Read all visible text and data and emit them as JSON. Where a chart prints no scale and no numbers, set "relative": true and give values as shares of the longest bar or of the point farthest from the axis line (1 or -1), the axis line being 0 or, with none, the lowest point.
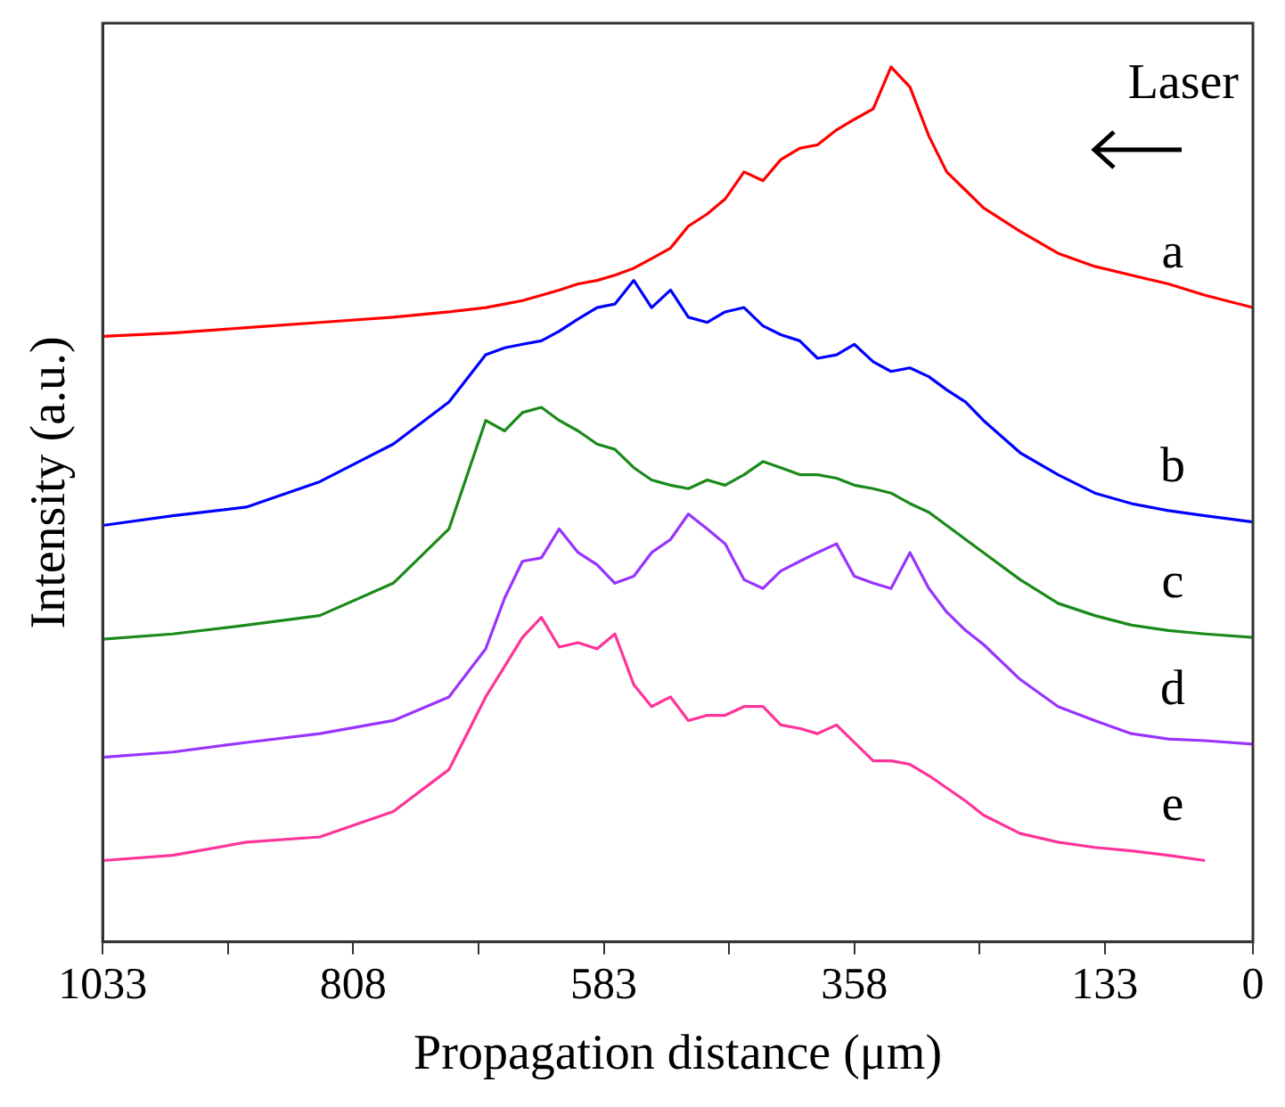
{
  "chart_data": {
    "type": "line",
    "xlabel": "Propagation distance (μm)",
    "ylabel": "Intensity (a.u.)",
    "relative": true,
    "legend": false,
    "xlim": [
      1033,
      0
    ],
    "xticks": [
      1033,
      {
        "value": 920.5,
        "label": null
      },
      808,
      {
        "value": 695.5,
        "label": null
      },
      583,
      {
        "value": 470.5,
        "label": null
      },
      358,
      {
        "value": 245.5,
        "label": null
      },
      133,
      0
    ],
    "annotations": [
      "Laser"
    ],
    "x": [
      1033,
      970,
      904,
      838,
      772,
      722,
      689,
      672,
      656,
      639,
      623,
      606,
      589,
      573,
      556,
      540,
      523,
      507,
      490,
      474,
      457,
      440,
      424,
      407,
      391,
      374,
      358,
      341,
      325,
      308,
      291,
      275,
      258,
      242,
      209,
      175,
      142,
      109,
      76,
      43,
      0
    ],
    "series": [
      {
        "name": "a",
        "color": "#ff0000",
        "values": [
          0.692,
          0.696,
          0.702,
          0.708,
          0.714,
          0.72,
          0.725,
          0.729,
          0.733,
          0.739,
          0.745,
          0.752,
          0.756,
          0.762,
          0.77,
          0.781,
          0.793,
          0.818,
          0.832,
          0.849,
          0.88,
          0.87,
          0.894,
          0.907,
          0.911,
          0.928,
          0.94,
          0.952,
          1,
          0.977,
          0.921,
          0.88,
          0.859,
          0.839,
          0.812,
          0.787,
          0.772,
          0.762,
          0.752,
          0.739,
          0.725
        ]
      },
      {
        "name": "b",
        "color": "#0000ff",
        "values": [
          0.476,
          0.487,
          0.497,
          0.526,
          0.569,
          0.617,
          0.671,
          0.679,
          0.683,
          0.687,
          0.698,
          0.712,
          0.725,
          0.729,
          0.756,
          0.725,
          0.745,
          0.714,
          0.708,
          0.72,
          0.725,
          0.704,
          0.694,
          0.687,
          0.667,
          0.671,
          0.683,
          0.663,
          0.652,
          0.656,
          0.646,
          0.631,
          0.617,
          0.596,
          0.559,
          0.534,
          0.513,
          0.501,
          0.493,
          0.487,
          0.48
        ]
      },
      {
        "name": "c",
        "color": "#1a8a1a",
        "values": [
          0.346,
          0.352,
          0.362,
          0.373,
          0.41,
          0.472,
          0.596,
          0.584,
          0.605,
          0.611,
          0.596,
          0.584,
          0.569,
          0.563,
          0.542,
          0.528,
          0.522,
          0.518,
          0.528,
          0.522,
          0.534,
          0.549,
          0.542,
          0.534,
          0.534,
          0.53,
          0.522,
          0.518,
          0.513,
          0.501,
          0.491,
          0.476,
          0.46,
          0.445,
          0.414,
          0.387,
          0.373,
          0.362,
          0.356,
          0.352,
          0.348
        ]
      },
      {
        "name": "d",
        "color": "#9933ff",
        "values": [
          0.211,
          0.217,
          0.228,
          0.238,
          0.253,
          0.28,
          0.335,
          0.393,
          0.435,
          0.439,
          0.472,
          0.445,
          0.431,
          0.41,
          0.418,
          0.445,
          0.46,
          0.489,
          0.472,
          0.455,
          0.414,
          0.404,
          0.424,
          0.435,
          0.445,
          0.455,
          0.418,
          0.41,
          0.404,
          0.445,
          0.404,
          0.377,
          0.356,
          0.34,
          0.3,
          0.269,
          0.253,
          0.238,
          0.232,
          0.23,
          0.226
        ]
      },
      {
        "name": "e",
        "color": "#ff3399",
        "values": [
          0.093,
          0.099,
          0.114,
          0.12,
          0.149,
          0.197,
          0.28,
          0.315,
          0.348,
          0.371,
          0.337,
          0.342,
          0.335,
          0.352,
          0.294,
          0.269,
          0.28,
          0.253,
          0.259,
          0.259,
          0.269,
          0.269,
          0.248,
          0.244,
          0.238,
          0.248,
          0.228,
          0.207,
          0.207,
          0.203,
          0.19,
          0.176,
          0.161,
          0.145,
          0.124,
          0.114,
          0.108,
          0.104,
          0.099,
          0.093,
          null
        ]
      }
    ]
  }
}
